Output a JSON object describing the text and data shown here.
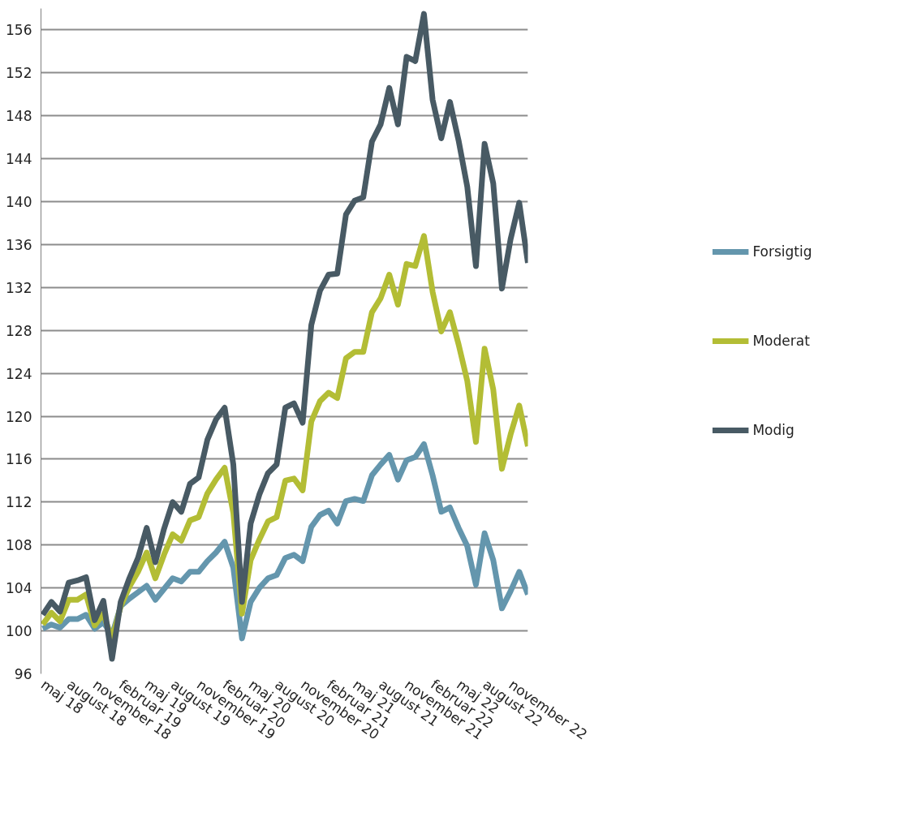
{
  "chart_data": {
    "type": "line",
    "categories": [
      "maj 18",
      null,
      null,
      "august 18",
      null,
      null,
      "november 18",
      null,
      null,
      "februar 19",
      null,
      null,
      "maj 19",
      null,
      null,
      "august 19",
      null,
      null,
      "november 19",
      null,
      null,
      "februar 20",
      null,
      null,
      "maj 20",
      null,
      null,
      "august 20",
      null,
      null,
      "november 20",
      null,
      null,
      "februar 21",
      null,
      null,
      "maj 21",
      null,
      null,
      "august 21",
      null,
      null,
      "november 21",
      null,
      null,
      "februar 22",
      null,
      null,
      "maj 22",
      null,
      null,
      "august 22",
      null,
      null,
      "november 22",
      null,
      null
    ],
    "series": [
      {
        "name": "Forsigtig",
        "color": "#6496ad",
        "values": [
          100.2,
          100.6,
          100.3,
          101.1,
          101.1,
          101.5,
          100.2,
          100.8,
          99.6,
          102.3,
          103.0,
          103.6,
          104.2,
          102.9,
          103.9,
          104.9,
          104.6,
          105.5,
          105.5,
          106.5,
          107.3,
          108.3,
          105.9,
          99.3,
          102.7,
          104.0,
          104.9,
          105.2,
          106.8,
          107.1,
          106.5,
          109.7,
          110.8,
          111.2,
          110.0,
          112.1,
          112.3,
          112.1,
          114.5,
          115.5,
          116.4,
          114.1,
          115.9,
          116.2,
          117.4,
          114.5,
          111.1,
          111.5,
          109.6,
          107.9,
          104.3,
          109.1,
          106.6,
          102.1,
          103.7,
          105.5,
          103.4
        ]
      },
      {
        "name": "Moderat",
        "color": "#b3bd35",
        "values": [
          100.6,
          101.7,
          100.9,
          102.9,
          102.9,
          103.4,
          100.5,
          101.6,
          99.2,
          102.3,
          104.1,
          105.5,
          107.3,
          104.9,
          107.1,
          109.0,
          108.4,
          110.3,
          110.6,
          112.8,
          114.1,
          115.2,
          111.0,
          101.6,
          106.6,
          108.5,
          110.2,
          110.6,
          114.0,
          114.2,
          113.1,
          119.5,
          121.4,
          122.2,
          121.7,
          125.4,
          126.0,
          126.0,
          129.7,
          131.0,
          133.2,
          130.4,
          134.2,
          134.0,
          136.8,
          131.6,
          127.9,
          129.7,
          126.7,
          123.3,
          117.6,
          126.3,
          122.5,
          115.1,
          118.3,
          121.0,
          117.2
        ]
      },
      {
        "name": "Modig",
        "color": "#485a64",
        "values": [
          101.5,
          102.7,
          101.8,
          104.5,
          104.7,
          105.0,
          101.0,
          102.8,
          97.4,
          102.7,
          104.9,
          106.8,
          109.6,
          106.4,
          109.5,
          112.0,
          111.1,
          113.7,
          114.3,
          117.8,
          119.7,
          120.8,
          115.5,
          102.7,
          110.0,
          112.7,
          114.7,
          115.5,
          120.8,
          121.2,
          119.4,
          128.5,
          131.7,
          133.2,
          133.3,
          138.8,
          140.1,
          140.4,
          145.6,
          147.2,
          150.6,
          147.2,
          153.5,
          153.1,
          157.5,
          149.5,
          145.9,
          149.3,
          145.7,
          141.4,
          134.0,
          145.4,
          141.7,
          131.9,
          136.5,
          139.9,
          134.3
        ]
      }
    ],
    "ylim": [
      96,
      158
    ],
    "yticks": [
      96,
      100,
      104,
      108,
      112,
      116,
      120,
      124,
      128,
      132,
      136,
      140,
      144,
      148,
      152,
      156
    ],
    "grid": "y",
    "legend": "right",
    "line_style": "solid",
    "marker": "none"
  }
}
